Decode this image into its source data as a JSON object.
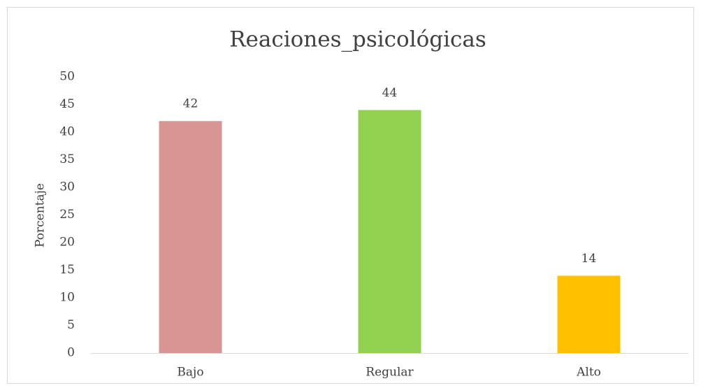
{
  "chart_data": {
    "type": "bar",
    "title": "Reaciones_psicológicas",
    "y_label": "Porcentaje",
    "categories": [
      "Bajo",
      "Regular",
      "Alto"
    ],
    "values": [
      42,
      44,
      14
    ],
    "colors": [
      "#d99594",
      "#92d050",
      "#ffc000"
    ],
    "ylim": [
      0,
      50
    ],
    "yticks": [
      0,
      5,
      10,
      15,
      20,
      25,
      30,
      35,
      40,
      45,
      50
    ],
    "grid": false,
    "data_labels": true
  }
}
